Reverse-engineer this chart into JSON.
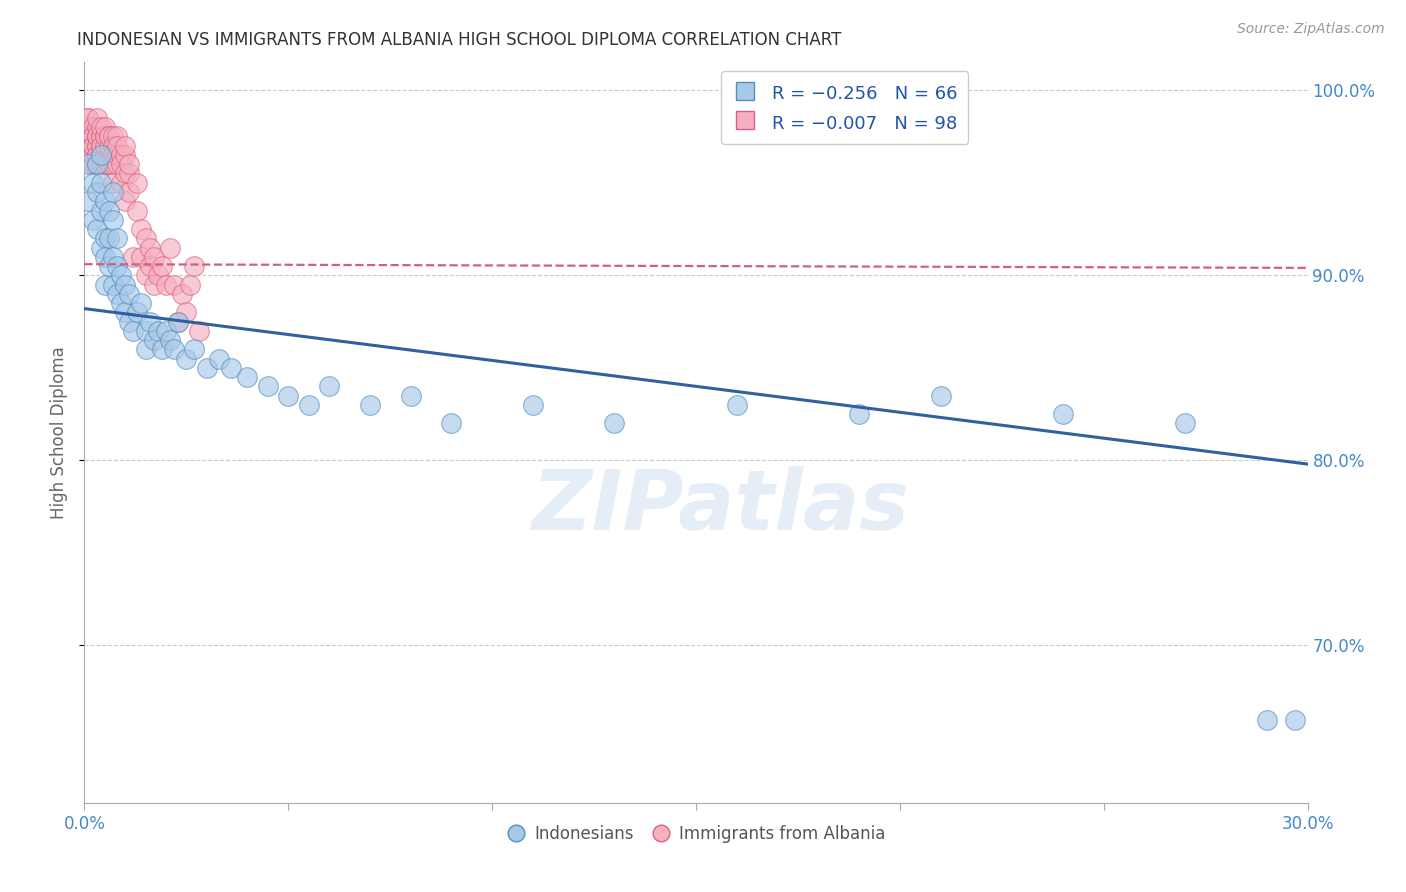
{
  "title": "INDONESIAN VS IMMIGRANTS FROM ALBANIA HIGH SCHOOL DIPLOMA CORRELATION CHART",
  "source": "Source: ZipAtlas.com",
  "ylabel": "High School Diploma",
  "yticks": [
    0.7,
    0.8,
    0.9,
    1.0
  ],
  "ytick_labels": [
    "70.0%",
    "80.0%",
    "90.0%",
    "100.0%"
  ],
  "xlim": [
    0.0,
    0.3
  ],
  "ylim": [
    0.615,
    1.015
  ],
  "watermark": "ZIPatlas",
  "blue_color": "#a8c8e8",
  "pink_color": "#f4b0c0",
  "blue_edge_color": "#5090c0",
  "pink_edge_color": "#e06080",
  "blue_line_color": "#3060a0",
  "pink_line_color": "#d06080",
  "blue_trend": [
    0.0,
    0.882,
    0.3,
    0.798
  ],
  "pink_trend": [
    0.0,
    0.906,
    0.3,
    0.904
  ],
  "indonesians_x": [
    0.001,
    0.001,
    0.002,
    0.002,
    0.003,
    0.003,
    0.003,
    0.004,
    0.004,
    0.004,
    0.004,
    0.005,
    0.005,
    0.005,
    0.005,
    0.006,
    0.006,
    0.006,
    0.007,
    0.007,
    0.007,
    0.007,
    0.008,
    0.008,
    0.008,
    0.009,
    0.009,
    0.01,
    0.01,
    0.011,
    0.011,
    0.012,
    0.013,
    0.014,
    0.015,
    0.015,
    0.016,
    0.017,
    0.018,
    0.019,
    0.02,
    0.021,
    0.022,
    0.023,
    0.025,
    0.027,
    0.03,
    0.033,
    0.036,
    0.04,
    0.045,
    0.05,
    0.055,
    0.06,
    0.07,
    0.08,
    0.09,
    0.11,
    0.13,
    0.16,
    0.19,
    0.21,
    0.24,
    0.27,
    0.29,
    0.297
  ],
  "indonesians_y": [
    0.94,
    0.96,
    0.93,
    0.95,
    0.925,
    0.945,
    0.96,
    0.915,
    0.935,
    0.95,
    0.965,
    0.92,
    0.94,
    0.91,
    0.895,
    0.905,
    0.92,
    0.935,
    0.895,
    0.91,
    0.93,
    0.945,
    0.89,
    0.905,
    0.92,
    0.885,
    0.9,
    0.88,
    0.895,
    0.875,
    0.89,
    0.87,
    0.88,
    0.885,
    0.87,
    0.86,
    0.875,
    0.865,
    0.87,
    0.86,
    0.87,
    0.865,
    0.86,
    0.875,
    0.855,
    0.86,
    0.85,
    0.855,
    0.85,
    0.845,
    0.84,
    0.835,
    0.83,
    0.84,
    0.83,
    0.835,
    0.82,
    0.83,
    0.82,
    0.83,
    0.825,
    0.835,
    0.825,
    0.82,
    0.66,
    0.66
  ],
  "albania_x": [
    0.0,
    0.0,
    0.001,
    0.001,
    0.001,
    0.001,
    0.001,
    0.001,
    0.001,
    0.001,
    0.001,
    0.002,
    0.002,
    0.002,
    0.002,
    0.002,
    0.002,
    0.002,
    0.002,
    0.002,
    0.003,
    0.003,
    0.003,
    0.003,
    0.003,
    0.003,
    0.003,
    0.003,
    0.003,
    0.003,
    0.003,
    0.003,
    0.003,
    0.004,
    0.004,
    0.004,
    0.004,
    0.004,
    0.004,
    0.004,
    0.004,
    0.004,
    0.005,
    0.005,
    0.005,
    0.005,
    0.005,
    0.005,
    0.005,
    0.006,
    0.006,
    0.006,
    0.006,
    0.006,
    0.006,
    0.006,
    0.007,
    0.007,
    0.007,
    0.007,
    0.007,
    0.007,
    0.008,
    0.008,
    0.008,
    0.008,
    0.009,
    0.009,
    0.009,
    0.01,
    0.01,
    0.01,
    0.01,
    0.011,
    0.011,
    0.011,
    0.012,
    0.013,
    0.013,
    0.014,
    0.014,
    0.015,
    0.015,
    0.016,
    0.016,
    0.017,
    0.017,
    0.018,
    0.019,
    0.02,
    0.021,
    0.022,
    0.023,
    0.024,
    0.025,
    0.026,
    0.027,
    0.028
  ],
  "albania_y": [
    0.97,
    0.975,
    0.985,
    0.975,
    0.97,
    0.965,
    0.98,
    0.975,
    0.97,
    0.965,
    0.985,
    0.96,
    0.975,
    0.965,
    0.97,
    0.98,
    0.96,
    0.975,
    0.965,
    0.97,
    0.96,
    0.975,
    0.965,
    0.97,
    0.975,
    0.96,
    0.98,
    0.965,
    0.97,
    0.975,
    0.96,
    0.985,
    0.965,
    0.96,
    0.975,
    0.965,
    0.97,
    0.96,
    0.975,
    0.98,
    0.965,
    0.97,
    0.96,
    0.975,
    0.965,
    0.97,
    0.96,
    0.975,
    0.98,
    0.965,
    0.96,
    0.975,
    0.965,
    0.97,
    0.975,
    0.96,
    0.965,
    0.975,
    0.96,
    0.97,
    0.95,
    0.965,
    0.96,
    0.975,
    0.965,
    0.97,
    0.95,
    0.965,
    0.96,
    0.955,
    0.965,
    0.97,
    0.94,
    0.955,
    0.945,
    0.96,
    0.91,
    0.935,
    0.95,
    0.925,
    0.91,
    0.92,
    0.9,
    0.905,
    0.915,
    0.895,
    0.91,
    0.9,
    0.905,
    0.895,
    0.915,
    0.895,
    0.875,
    0.89,
    0.88,
    0.895,
    0.905,
    0.87
  ],
  "legend_r_blue": "R = −0.256",
  "legend_n_blue": "N = 66",
  "legend_r_pink": "R = −0.007",
  "legend_n_pink": "N = 98",
  "legend_label_blue": "Indonesians",
  "legend_label_pink": "Immigrants from Albania"
}
